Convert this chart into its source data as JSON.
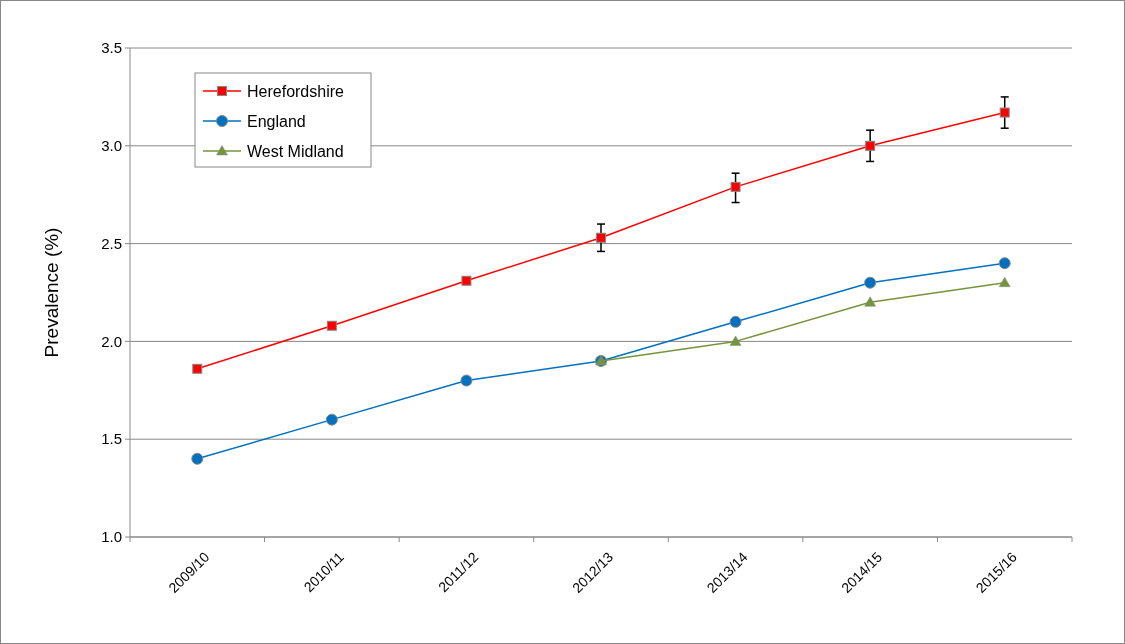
{
  "chart_data": {
    "type": "line",
    "ylabel": "Prevalence (%)",
    "categories": [
      "2009/10",
      "2010/11",
      "2011/12",
      "2012/13",
      "2013/14",
      "2014/15",
      "2015/16"
    ],
    "series": [
      {
        "name": "Herefordshire",
        "color": "#ff0000",
        "marker": "square",
        "values": [
          1.86,
          2.08,
          2.31,
          2.53,
          2.79,
          3.0,
          3.17
        ],
        "errors": [
          null,
          null,
          null,
          [
            2.46,
            2.6
          ],
          [
            2.71,
            2.86
          ],
          [
            2.92,
            3.08
          ],
          [
            3.09,
            3.25
          ]
        ]
      },
      {
        "name": "England",
        "color": "#0070c0",
        "marker": "circle",
        "values": [
          1.4,
          1.6,
          1.8,
          1.9,
          2.1,
          2.3,
          2.4
        ]
      },
      {
        "name": "West Midland",
        "color": "#77933c",
        "marker": "triangle",
        "values": [
          null,
          null,
          null,
          1.9,
          2.0,
          2.2,
          2.3
        ]
      }
    ],
    "ylim": [
      1.0,
      3.5
    ],
    "yticks": [
      {
        "value": 1.0,
        "label": "1.0"
      },
      {
        "value": 1.5,
        "label": "1.5"
      },
      {
        "value": 2.0,
        "label": "2.0"
      },
      {
        "value": 2.5,
        "label": "2.5"
      },
      {
        "value": 3.0,
        "label": "3.0"
      },
      {
        "value": 3.5,
        "label": "3.5"
      }
    ],
    "grid": "y",
    "legend": "top left"
  }
}
